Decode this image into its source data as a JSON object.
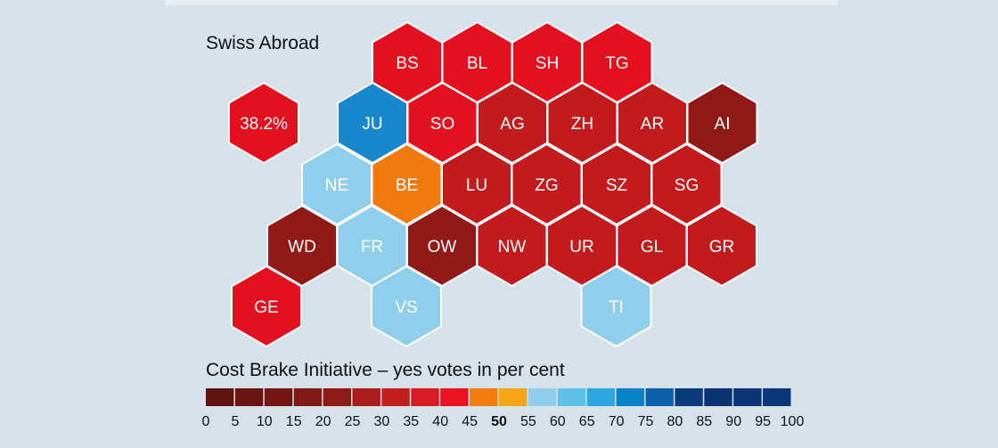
{
  "map_title": "Swiss Abroad",
  "swiss_abroad": {
    "label": "38.2%",
    "color": "#e3101f"
  },
  "legend": {
    "title": "Cost Brake Initiative – yes votes in per cent",
    "colors": [
      "#5e1410",
      "#6b1512",
      "#741714",
      "#7f1a16",
      "#8d1c18",
      "#a81e1c",
      "#c21d1f",
      "#d81b23",
      "#e8131f",
      "#f27b12",
      "#f6a517",
      "#8dccea",
      "#5fc0e8",
      "#2ea6e0",
      "#0a80c8",
      "#0c5fa8",
      "#0a3b7a",
      "#093370",
      "#0a3474",
      "#0b3778"
    ],
    "ticks": [
      "0",
      "5",
      "10",
      "15",
      "20",
      "25",
      "30",
      "35",
      "40",
      "45",
      "50",
      "55",
      "60",
      "65",
      "70",
      "75",
      "80",
      "85",
      "90",
      "95",
      "100"
    ],
    "bold_tick": "50"
  },
  "cantons": [
    {
      "code": "BS",
      "row": 0,
      "col": 0,
      "color": "#e3101f"
    },
    {
      "code": "BL",
      "row": 0,
      "col": 1,
      "color": "#e3101f"
    },
    {
      "code": "SH",
      "row": 0,
      "col": 2,
      "color": "#e3101f"
    },
    {
      "code": "TG",
      "row": 0,
      "col": 3,
      "color": "#e3101f"
    },
    {
      "code": "JU",
      "row": 1,
      "col": 0,
      "color": "#1887cc"
    },
    {
      "code": "SO",
      "row": 1,
      "col": 1,
      "color": "#e3101f"
    },
    {
      "code": "AG",
      "row": 1,
      "col": 2,
      "color": "#c11b1e"
    },
    {
      "code": "ZH",
      "row": 1,
      "col": 3,
      "color": "#c11b1e"
    },
    {
      "code": "AR",
      "row": 1,
      "col": 4,
      "color": "#c11b1e"
    },
    {
      "code": "AI",
      "row": 1,
      "col": 5,
      "color": "#8f1a17"
    },
    {
      "code": "NE",
      "row": 2,
      "col": 0,
      "color": "#8fcfec"
    },
    {
      "code": "BE",
      "row": 2,
      "col": 1,
      "color": "#f07a10"
    },
    {
      "code": "LU",
      "row": 2,
      "col": 2,
      "color": "#c11b1e"
    },
    {
      "code": "ZG",
      "row": 2,
      "col": 3,
      "color": "#c11b1e"
    },
    {
      "code": "SZ",
      "row": 2,
      "col": 4,
      "color": "#c11b1e"
    },
    {
      "code": "SG",
      "row": 2,
      "col": 5,
      "color": "#c11b1e"
    },
    {
      "code": "WD",
      "row": 3,
      "col": 0,
      "color": "#8f1a17"
    },
    {
      "code": "FR",
      "row": 3,
      "col": 1,
      "color": "#8fcfec"
    },
    {
      "code": "OW",
      "row": 3,
      "col": 2,
      "color": "#8f1a17"
    },
    {
      "code": "NW",
      "row": 3,
      "col": 3,
      "color": "#c11b1e"
    },
    {
      "code": "UR",
      "row": 3,
      "col": 4,
      "color": "#c11b1e"
    },
    {
      "code": "GL",
      "row": 3,
      "col": 5,
      "color": "#c11b1e"
    },
    {
      "code": "GR",
      "row": 3,
      "col": 6,
      "color": "#c11b1e"
    },
    {
      "code": "GE",
      "row": 4,
      "col": 0,
      "color": "#e3101f"
    },
    {
      "code": "VS",
      "row": 4,
      "col": 2,
      "color": "#8fcfec"
    },
    {
      "code": "TI",
      "row": 4,
      "col": 5,
      "color": "#8fcfec"
    }
  ]
}
